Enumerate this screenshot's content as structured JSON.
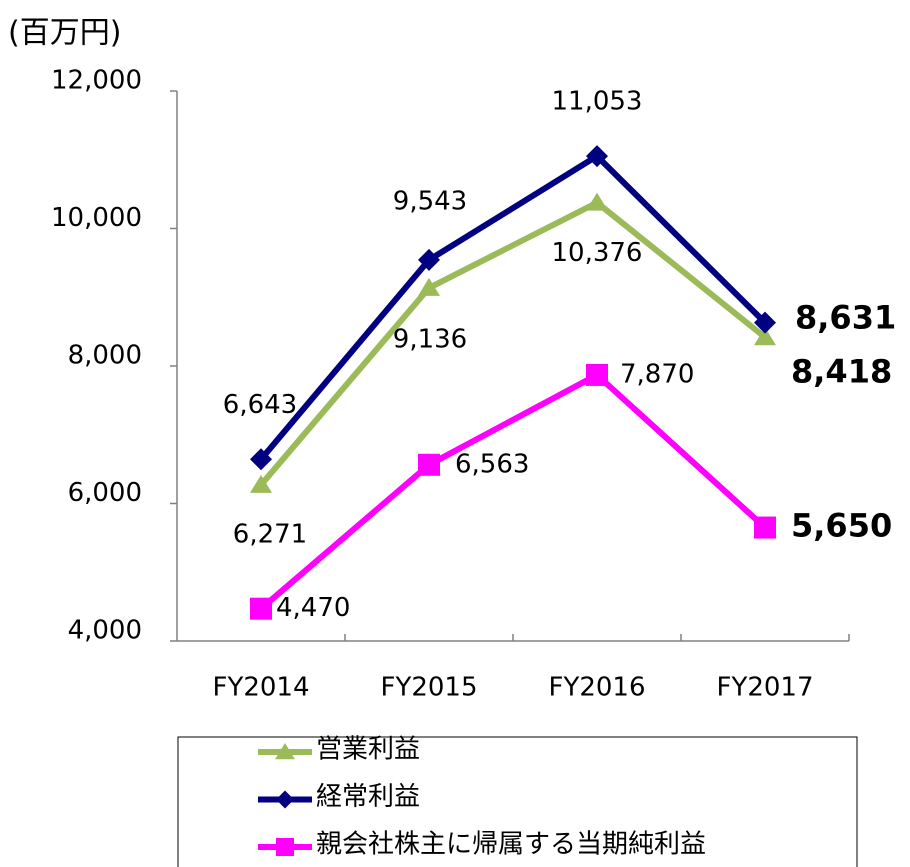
{
  "chart_data": {
    "type": "line",
    "y_axis_label": "(百万円)",
    "categories": [
      "FY2014",
      "FY2015",
      "FY2016",
      "FY2017"
    ],
    "ylim": [
      4000,
      12000
    ],
    "yticks": [
      {
        "value": 4000,
        "label": "4,000"
      },
      {
        "value": 6000,
        "label": "6,000"
      },
      {
        "value": 8000,
        "label": "8,000"
      },
      {
        "value": 10000,
        "label": "10,000"
      },
      {
        "value": 12000,
        "label": "12,000"
      }
    ],
    "grid": false,
    "legend": "bottom",
    "series": [
      {
        "name": "営業利益",
        "color": "#9bbb59",
        "marker": "triangle",
        "values": [
          6271,
          9136,
          10376,
          8418
        ],
        "value_labels": [
          "6,271",
          "9,136",
          "10,376",
          "8,418"
        ]
      },
      {
        "name": "経常利益",
        "color": "#000080",
        "marker": "diamond",
        "values": [
          6643,
          9543,
          11053,
          8631
        ],
        "value_labels": [
          "6,643",
          "9,543",
          "11,053",
          "8,631"
        ]
      },
      {
        "name": "親会社株主に帰属する当期純利益",
        "color": "#ff00ff",
        "marker": "square",
        "values": [
          4470,
          6563,
          7870,
          5650
        ],
        "value_labels": [
          "4,470",
          "6,563",
          "7,870",
          "5,650"
        ]
      }
    ]
  }
}
